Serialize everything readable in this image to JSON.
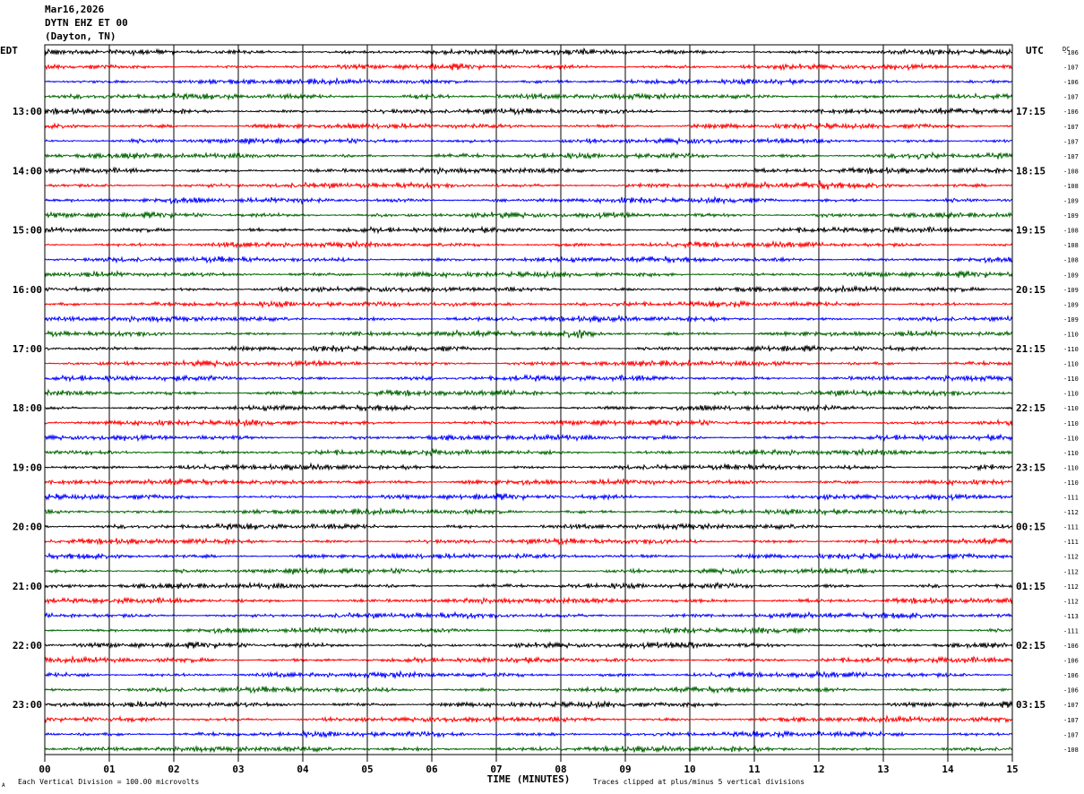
{
  "header": {
    "date": "Mar16,2026",
    "station": "DYTN EHZ ET 00",
    "location": "(Dayton, TN)"
  },
  "labels": {
    "left_zone": "EDT",
    "right_zone": "UTC",
    "dc_header": "DC",
    "x_axis_title": "TIME (MINUTES)",
    "scale_note": "Each Vertical Division =  100.00 microvolts",
    "clip_note": "Traces clipped at plus/minus 5 vertical divisions",
    "corner_mark": "A"
  },
  "colors": {
    "trace_cycle": [
      "#000000",
      "#ff0000",
      "#0000ff",
      "#006400"
    ],
    "grid": "#000000",
    "background": "#ffffff"
  },
  "chart_data": {
    "type": "line",
    "title": "DYTN EHZ ET 00",
    "xlabel": "TIME (MINUTES)",
    "xlim": [
      0,
      15
    ],
    "x_ticks": [
      "00",
      "01",
      "02",
      "03",
      "04",
      "05",
      "06",
      "07",
      "08",
      "09",
      "10",
      "11",
      "12",
      "13",
      "14",
      "15"
    ],
    "trace_count": 48,
    "trace_minutes": 15,
    "left_hour_labels": [
      {
        "trace": 4,
        "label": "13:00"
      },
      {
        "trace": 8,
        "label": "14:00"
      },
      {
        "trace": 12,
        "label": "15:00"
      },
      {
        "trace": 16,
        "label": "16:00"
      },
      {
        "trace": 20,
        "label": "17:00"
      },
      {
        "trace": 24,
        "label": "18:00"
      },
      {
        "trace": 28,
        "label": "19:00"
      },
      {
        "trace": 32,
        "label": "20:00"
      },
      {
        "trace": 36,
        "label": "21:00"
      },
      {
        "trace": 40,
        "label": "22:00"
      },
      {
        "trace": 44,
        "label": "23:00"
      }
    ],
    "right_hour_labels": [
      {
        "trace": 4,
        "label": "17:15"
      },
      {
        "trace": 8,
        "label": "18:15"
      },
      {
        "trace": 12,
        "label": "19:15"
      },
      {
        "trace": 16,
        "label": "20:15"
      },
      {
        "trace": 20,
        "label": "21:15"
      },
      {
        "trace": 24,
        "label": "22:15"
      },
      {
        "trace": 28,
        "label": "23:15"
      },
      {
        "trace": 32,
        "label": "00:15"
      },
      {
        "trace": 36,
        "label": "01:15"
      },
      {
        "trace": 40,
        "label": "02:15"
      },
      {
        "trace": 44,
        "label": "03:15"
      }
    ],
    "dc_offsets": [
      -106,
      -107,
      -106,
      -107,
      -106,
      -107,
      -107,
      -107,
      -108,
      -108,
      -109,
      -109,
      -108,
      -108,
      -108,
      -109,
      -109,
      -109,
      -109,
      -110,
      -110,
      -110,
      -110,
      -110,
      -110,
      -110,
      -110,
      -110,
      -110,
      -110,
      -111,
      -112,
      -111,
      -111,
      -112,
      -112,
      -112,
      -112,
      -113,
      -111,
      -106,
      -106,
      -106,
      -106,
      -107,
      -107,
      -107,
      -108
    ],
    "events": [
      {
        "trace": 17,
        "minute": 6.3,
        "amplitude": 2.4,
        "duration_min": 0.5
      },
      {
        "trace": 3,
        "minute": 6.0,
        "amplitude": 1.3,
        "duration_min": 0.4
      },
      {
        "trace": 19,
        "minute": 8.3,
        "amplitude": 1.3,
        "duration_min": 0.3
      },
      {
        "trace": 29,
        "minute": 4.8,
        "amplitude": 1.4,
        "duration_min": 0.4
      },
      {
        "trace": 29,
        "minute": 6.6,
        "amplitude": 1.2,
        "duration_min": 0.3
      },
      {
        "trace": 28,
        "minute": 14.6,
        "amplitude": 1.4,
        "duration_min": 0.4
      },
      {
        "trace": 40,
        "minute": 10.0,
        "amplitude": 1.3,
        "duration_min": 0.3
      },
      {
        "trace": 9,
        "minute": 12.0,
        "amplitude": 1.1,
        "duration_min": 0.4
      },
      {
        "trace": 7,
        "minute": 13.6,
        "amplitude": 1.2,
        "duration_min": 0.5
      }
    ]
  }
}
